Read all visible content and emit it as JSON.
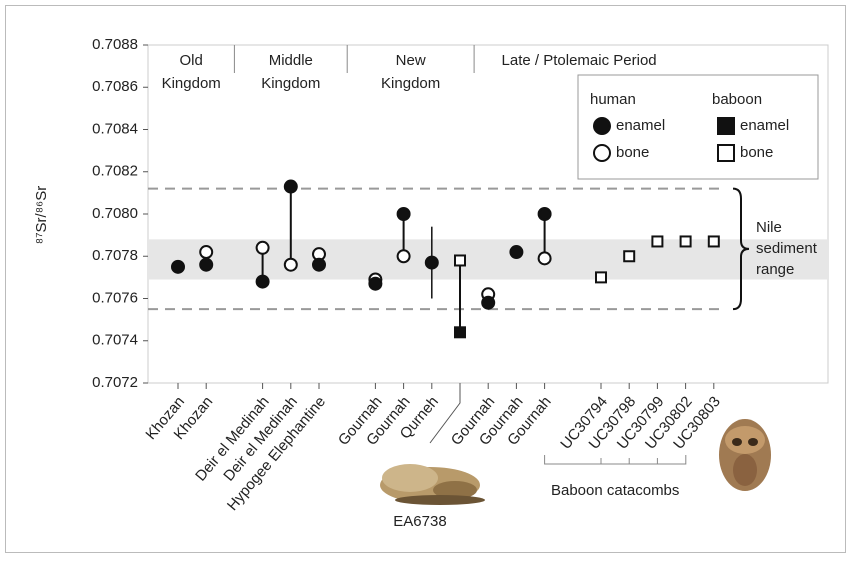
{
  "chart_data": {
    "type": "dot",
    "y_label": "⁸⁷Sr/⁸⁶Sr",
    "categories": [
      "Khozan",
      "Khozan",
      "Deir el Medinah",
      "Deir el Medinah",
      "Hypogee Elephantine",
      "Gournah",
      "Gournah",
      "Qurneh",
      null,
      "Gournah",
      "Gournah",
      "Gournah",
      "UC30794",
      "UC30798",
      "UC30799",
      "UC30802",
      "UC30803"
    ],
    "periods": [
      [
        "Old",
        "Kingdom"
      ],
      [
        "Middle",
        "Kingdom"
      ],
      [
        "New",
        "Kingdom"
      ],
      [
        "Late / Ptolemaic Period"
      ]
    ],
    "series": [
      {
        "group": "human",
        "name": "enamel",
        "marker": "circle",
        "filled": true,
        "color": "#111",
        "values": [
          0.70775,
          0.70776,
          0.70768,
          0.70813,
          0.70776,
          0.70767,
          0.708,
          0.70777,
          null,
          0.70758,
          0.70782,
          0.708,
          null,
          null,
          null,
          null,
          null
        ],
        "errors": [
          null,
          null,
          null,
          null,
          null,
          null,
          null,
          0.00017,
          null,
          null,
          null,
          null,
          null,
          null,
          null,
          null,
          null
        ]
      },
      {
        "group": "human",
        "name": "bone",
        "marker": "circle",
        "filled": false,
        "color": "#111",
        "values": [
          null,
          0.70782,
          0.70784,
          0.70776,
          0.70781,
          0.70769,
          0.7078,
          null,
          null,
          0.70762,
          null,
          0.70779,
          null,
          null,
          null,
          null,
          null
        ]
      },
      {
        "group": "baboon",
        "name": "enamel",
        "marker": "square",
        "filled": true,
        "color": "#111",
        "values": [
          null,
          null,
          null,
          null,
          null,
          null,
          null,
          null,
          0.70744,
          null,
          null,
          null,
          null,
          null,
          null,
          null,
          null
        ]
      },
      {
        "group": "baboon",
        "name": "bone",
        "marker": "square",
        "filled": false,
        "color": "#111",
        "values": [
          null,
          null,
          null,
          null,
          null,
          null,
          null,
          null,
          0.70778,
          null,
          null,
          null,
          0.7077,
          0.7078,
          0.70787,
          0.70787,
          0.70787
        ]
      }
    ],
    "ylim": [
      0.7072,
      0.7088
    ],
    "yticks": [
      0.7072,
      0.7074,
      0.7076,
      0.7078,
      {
        "value": 0.708,
        "label": "0.7080"
      },
      0.7082,
      0.7084,
      0.7086,
      0.7088
    ],
    "nile_band": [
      0.70769,
      0.70788
    ],
    "nile_dashed": [
      0.70755,
      0.70812
    ],
    "nile_label": [
      "Nile",
      "sediment",
      "range"
    ],
    "specimen_label": "EA6738",
    "catacombs_label": "Baboon catacombs"
  }
}
